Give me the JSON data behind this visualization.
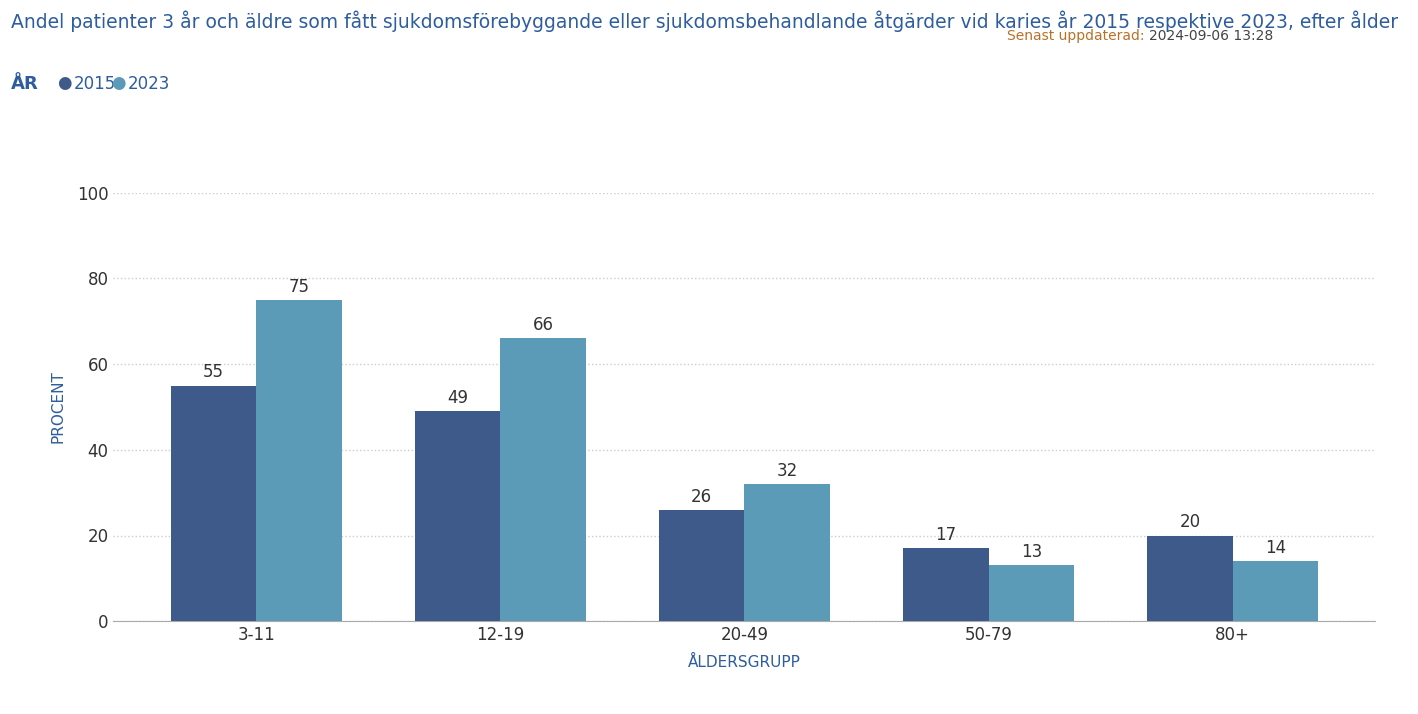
{
  "title": "Andel patienter 3 år och äldre som fått sjukdomsförebyggande eller sjukdomsbehandlande åtgärder vid karies år 2015 respektive 2023, efter ålder",
  "subtitle_label": "ÅR",
  "legend_2015": "2015",
  "legend_2023": "2023",
  "update_label": "Senast uppdaterad:",
  "update_date": "2024-09-06 13:28",
  "xlabel": "ÅLDERSGRUPP",
  "ylabel": "PROCENT",
  "categories": [
    "3-11",
    "12-19",
    "20-49",
    "50-79",
    "80+"
  ],
  "values_2015": [
    55,
    49,
    26,
    17,
    20
  ],
  "values_2023": [
    75,
    66,
    32,
    13,
    14
  ],
  "color_2015": "#3d5a8a",
  "color_2023": "#5b9bb8",
  "ylim": [
    0,
    100
  ],
  "yticks": [
    0,
    20,
    40,
    60,
    80,
    100
  ],
  "bg_color": "#ffffff",
  "title_color": "#2e5d9e",
  "axis_label_color": "#2e5d9e",
  "tick_color": "#555555",
  "grid_color": "#cccccc",
  "bar_width": 0.35,
  "title_fontsize": 13.5,
  "label_fontsize": 11,
  "tick_fontsize": 12,
  "value_fontsize": 12,
  "update_label_color": "#b5722a",
  "update_date_color": "#444444",
  "update_fontsize": 10,
  "legend_dot_color_2015": "#3d5a8a",
  "legend_dot_color_2023": "#5b9bb8",
  "legend_text_color": "#2e5d9e",
  "bottom_bar_color": "#1a3a6b"
}
